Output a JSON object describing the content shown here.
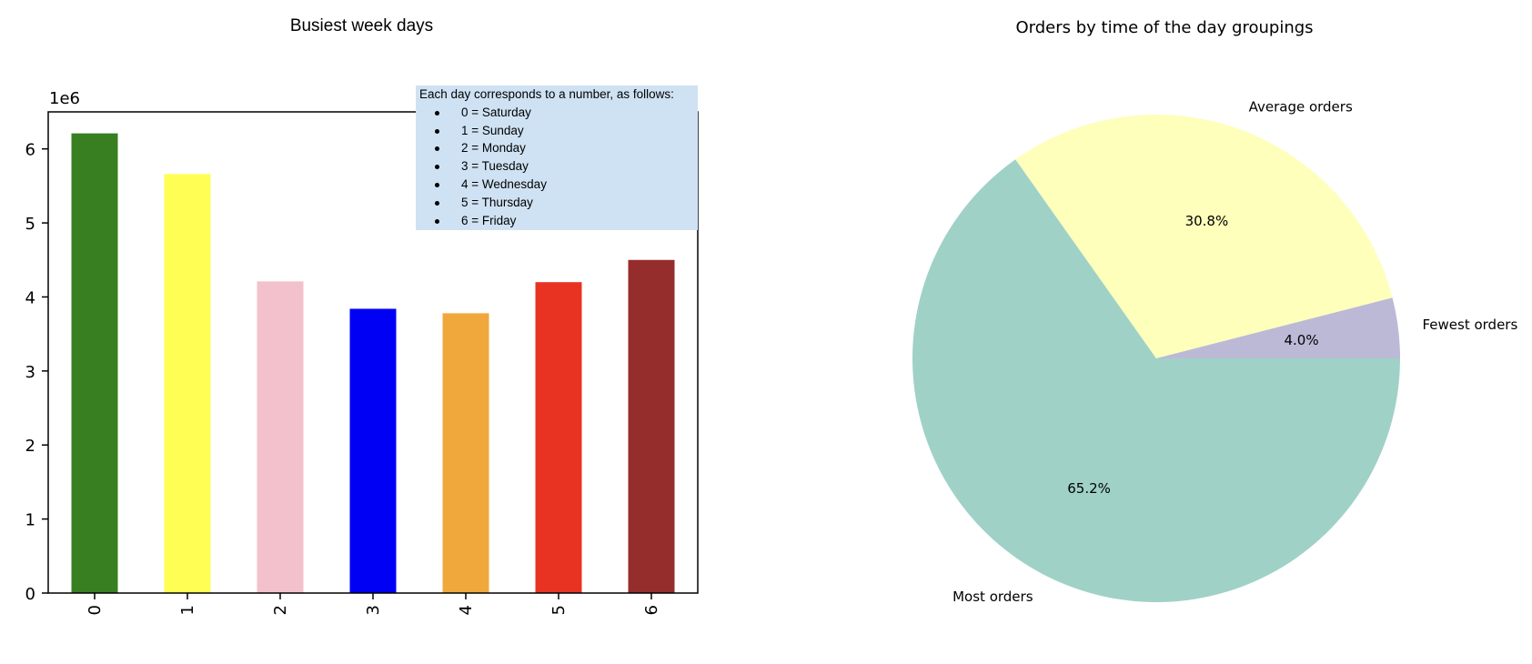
{
  "colors": {
    "bars": [
      "#387f21",
      "#fffe54",
      "#f3c1cb",
      "#0000f5",
      "#f0a83d",
      "#e83323",
      "#952d2d"
    ],
    "pie": [
      "#9fd1c7",
      "#fdffbb",
      "#bcb9d7"
    ],
    "legend_background": "#cfe2f3"
  },
  "legend_note": {
    "heading": "Each day corresponds to a number, as follows:",
    "items": [
      "0 = Saturday",
      "1 = Sunday",
      "2 = Monday",
      "3 = Tuesday",
      "4 = Wednesday",
      "5 = Thursday",
      "6 = Friday"
    ]
  },
  "chart_data": [
    {
      "type": "bar",
      "title": "Busiest week days",
      "categories": [
        "0",
        "1",
        "2",
        "3",
        "4",
        "5",
        "6"
      ],
      "values": [
        6210000,
        5660000,
        4210000,
        3840000,
        3780000,
        4200000,
        4500000
      ],
      "xlabel": "",
      "ylabel": "",
      "ylim": [
        0,
        6500000
      ],
      "yticks": [
        0,
        1000000,
        2000000,
        3000000,
        4000000,
        5000000,
        6000000
      ],
      "ytick_labels": [
        "0",
        "1",
        "2",
        "3",
        "4",
        "5",
        "6"
      ],
      "y_offset_label": "1e6",
      "grid": false,
      "legend": false
    },
    {
      "type": "pie",
      "title": "Orders by time of the day groupings",
      "labels": [
        "Most orders",
        "Average orders",
        "Fewest orders"
      ],
      "values": [
        65.2,
        30.8,
        4.0
      ],
      "value_labels": [
        "65.2%",
        "30.8%",
        "4.0%"
      ]
    }
  ]
}
